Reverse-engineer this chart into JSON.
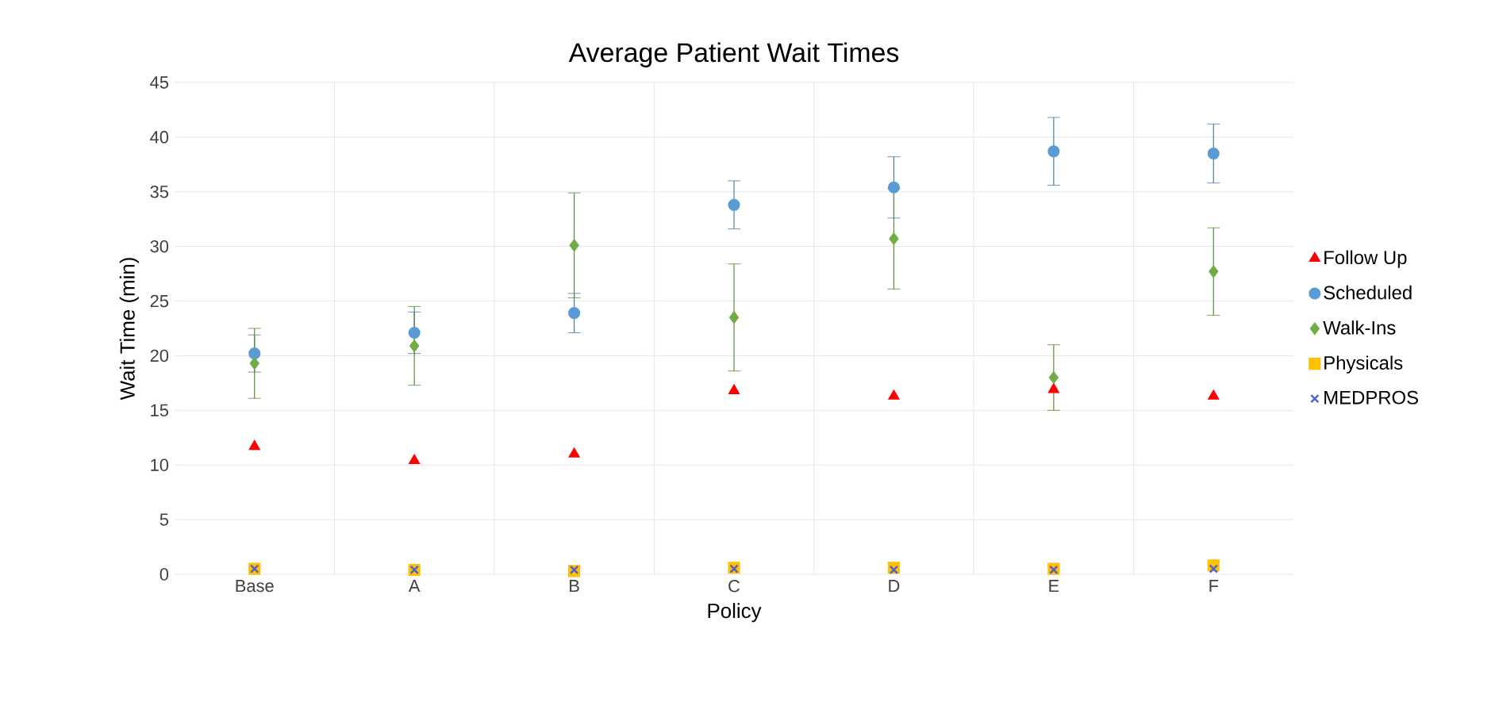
{
  "chart_data": {
    "type": "scatter",
    "title": "Average Patient Wait Times",
    "xlabel": "Policy",
    "ylabel": "Wait Time (min)",
    "categories": [
      "Base",
      "A",
      "B",
      "C",
      "D",
      "E",
      "F"
    ],
    "ylim": [
      0,
      45
    ],
    "yticks": [
      0,
      5,
      10,
      15,
      20,
      25,
      30,
      35,
      40,
      45
    ],
    "grid": true,
    "legend": "right",
    "series": [
      {
        "name": "Follow Up",
        "color": "#ff0000",
        "marker": "triangle",
        "values": [
          11.7,
          10.4,
          11.0,
          16.8,
          16.3,
          16.9,
          16.3
        ]
      },
      {
        "name": "Scheduled",
        "color": "#5b9bd5",
        "marker": "circle",
        "values": [
          20.2,
          22.1,
          23.9,
          33.8,
          35.4,
          38.7,
          38.5
        ],
        "errors": [
          1.7,
          1.9,
          1.8,
          2.2,
          2.8,
          3.1,
          2.7
        ]
      },
      {
        "name": "Walk-Ins",
        "color": "#70ad47",
        "marker": "diamond",
        "values": [
          19.3,
          20.9,
          30.1,
          23.5,
          30.7,
          18.0,
          27.7
        ],
        "errors": [
          3.2,
          3.6,
          4.8,
          4.9,
          4.6,
          3.0,
          4.0
        ]
      },
      {
        "name": "Physicals",
        "color": "#ffc000",
        "marker": "square",
        "values": [
          0.5,
          0.4,
          0.3,
          0.6,
          0.6,
          0.5,
          0.8
        ]
      },
      {
        "name": "MEDPROS",
        "color": "#4f5fd5",
        "marker": "cross",
        "values": [
          0.5,
          0.4,
          0.4,
          0.5,
          0.4,
          0.4,
          0.5
        ]
      }
    ]
  }
}
